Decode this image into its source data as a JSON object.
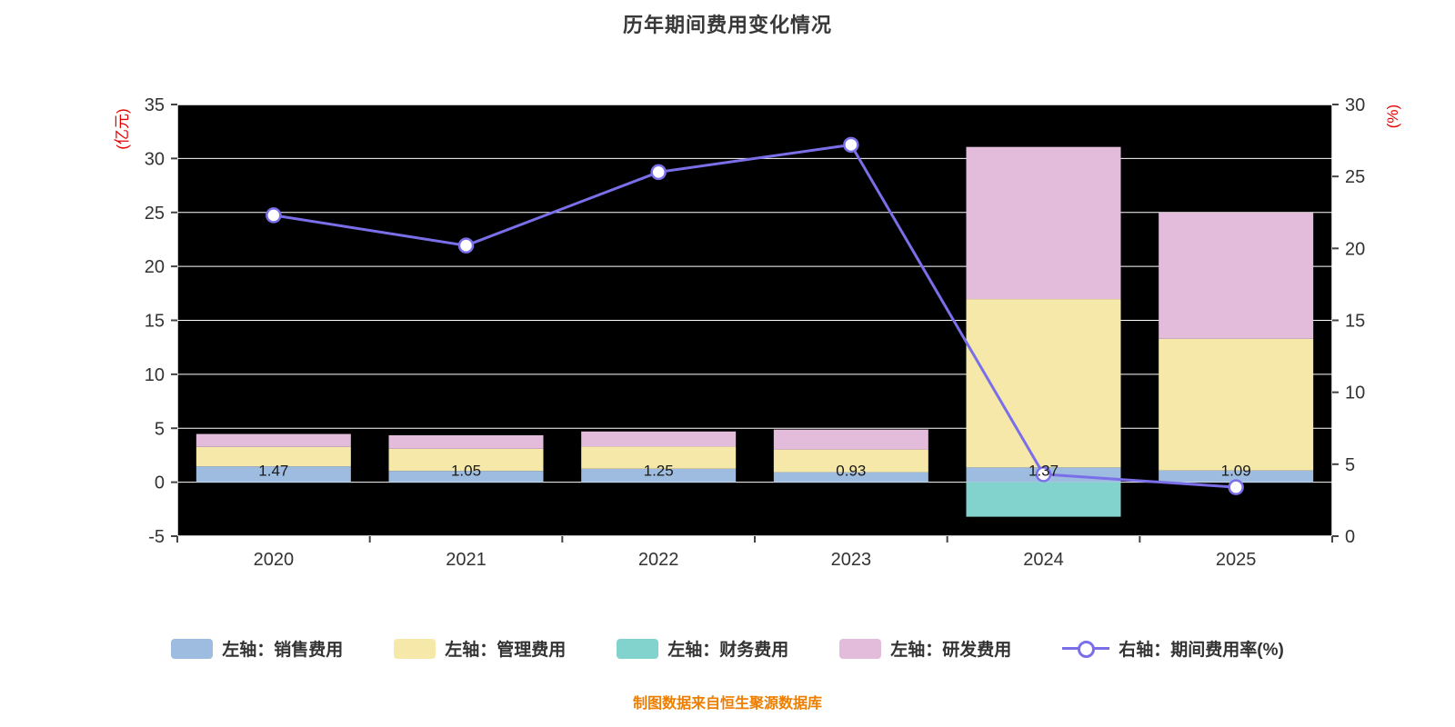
{
  "page": {
    "title": "历年期间费用变化情况",
    "footer": "制图数据来自恒生聚源数据库"
  },
  "chart_data": {
    "type": "bar",
    "subtype": "stacked-bar-with-line",
    "title": "历年期间费用变化情况",
    "categories": [
      "2020",
      "2021",
      "2022",
      "2023",
      "2024",
      "2025"
    ],
    "left_axis": {
      "unit": "(亿元)",
      "min": -5,
      "max": 35,
      "ticks": [
        35,
        30,
        25,
        20,
        15,
        10,
        5,
        0,
        -5
      ]
    },
    "right_axis": {
      "unit": "(%)",
      "min": 0,
      "max": 30,
      "ticks": [
        30,
        25,
        20,
        15,
        10,
        5,
        0
      ]
    },
    "bar_series": [
      {
        "name": "左轴：销售费用",
        "color": "#9ebcdf",
        "values": [
          1.47,
          1.05,
          1.25,
          0.93,
          1.37,
          1.09
        ]
      },
      {
        "name": "左轴：管理费用",
        "color": "#f6e8a9",
        "values": [
          1.8,
          2.05,
          2.05,
          2.1,
          15.6,
          12.2
        ]
      },
      {
        "name": "左轴：财务费用",
        "color": "#82d3cd",
        "values": [
          0,
          0,
          0,
          0,
          -3.2,
          0
        ]
      },
      {
        "name": "左轴：研发费用",
        "color": "#e3bcdb",
        "values": [
          1.2,
          1.25,
          1.4,
          1.85,
          14.1,
          11.7
        ]
      }
    ],
    "bar_labels": [
      "1.47",
      "1.05",
      "1.25",
      "0.93",
      "1.37",
      "1.09"
    ],
    "line_series": {
      "name": "右轴：期间费用率(%)",
      "color": "#7a6fe8",
      "values": [
        22.3,
        20.2,
        25.3,
        27.2,
        4.3,
        3.4
      ]
    },
    "colors": {
      "plot_background": "#000000",
      "gridline": "#ffffff",
      "axis_text": "#333333",
      "unit_label": "#e60000",
      "footer": "#ee7e00"
    },
    "legend_position": "bottom",
    "grid": true
  }
}
